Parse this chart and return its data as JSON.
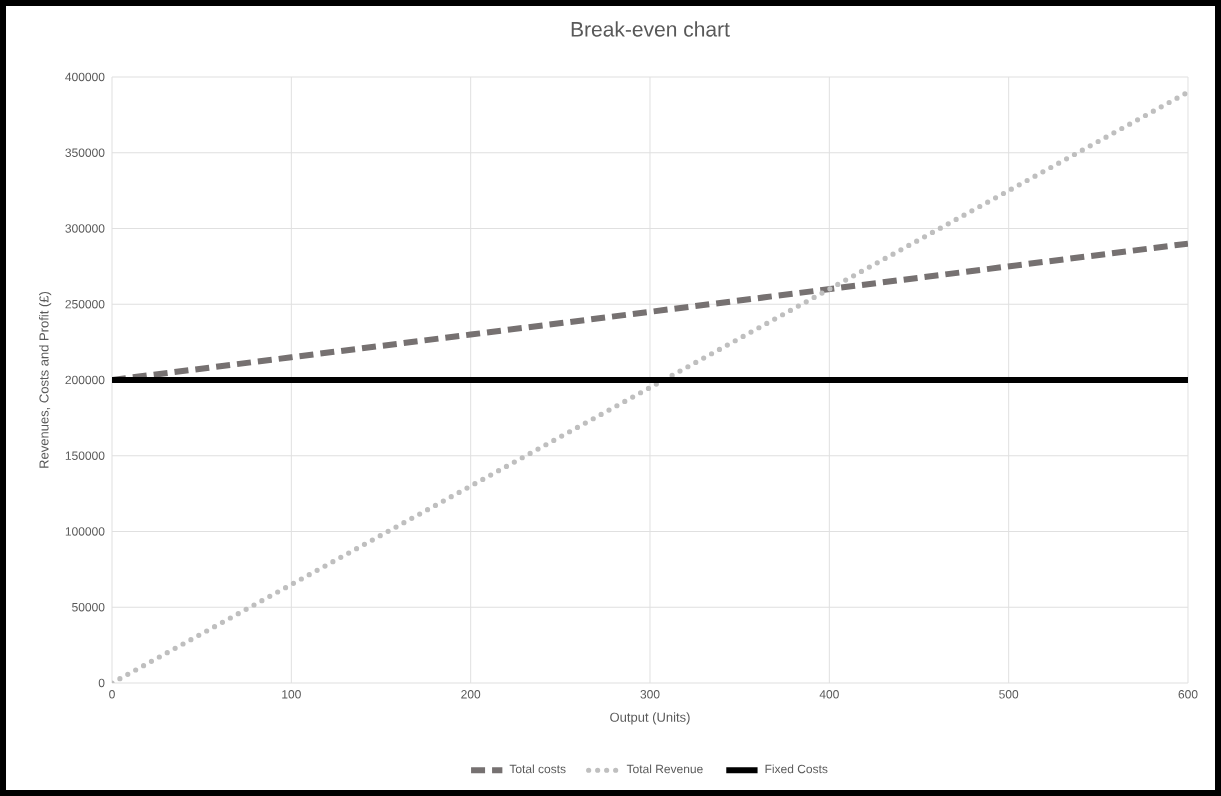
{
  "chart_data": {
    "type": "line",
    "title": "Break-even chart",
    "xlabel": "Output (Units)",
    "ylabel": "Revenues, Costs and Profit (£)",
    "x": [
      0,
      100,
      200,
      300,
      400,
      500,
      600
    ],
    "series": [
      {
        "name": "Total costs",
        "color": "#767171",
        "line_style": "dashed",
        "values": [
          200000,
          215000,
          230000,
          245000,
          260000,
          275000,
          290000
        ]
      },
      {
        "name": "Total Revenue",
        "color": "#bfbfbf",
        "line_style": "dotted",
        "values": [
          0,
          65000,
          130000,
          195000,
          260000,
          325000,
          390000
        ]
      },
      {
        "name": "Fixed Costs",
        "color": "#000000",
        "line_style": "solid",
        "values": [
          200000,
          200000,
          200000,
          200000,
          200000,
          200000,
          200000
        ]
      }
    ],
    "xlim": [
      0,
      600
    ],
    "ylim": [
      0,
      400000
    ],
    "xticks": [
      0,
      100,
      200,
      300,
      400,
      500,
      600
    ],
    "yticks": [
      0,
      50000,
      100000,
      150000,
      200000,
      250000,
      300000,
      350000,
      400000
    ],
    "grid": true,
    "legend": "bottom"
  }
}
